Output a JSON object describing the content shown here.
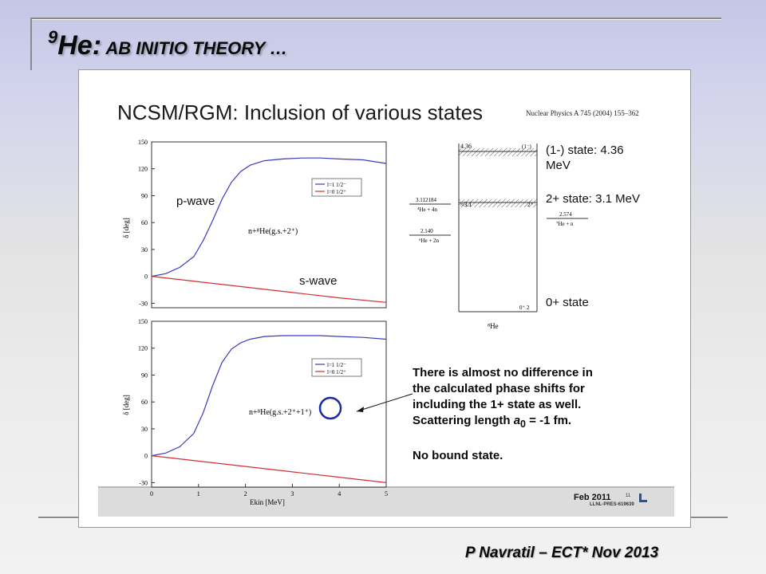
{
  "slide": {
    "title_superscript": "9",
    "title_element": "He:",
    "title_subtitle": " AB INITIO THEORY …",
    "credit": "P Navratil – ECT* Nov 2013"
  },
  "panel": {
    "title": "NCSM/RGM: Inclusion of various states",
    "journal_ref": "Nuclear Physics A 745 (2004) 155–362",
    "footer_date": "Feb 2011",
    "footer_code": "LLNL-PRES-619639",
    "footer_page": "11"
  },
  "plot_top": {
    "y_label": "δ [deg]",
    "y_ticks": [
      "150",
      "120",
      "90",
      "60",
      "30",
      "0",
      "-30"
    ],
    "legend": [
      "l=1 1/2⁻",
      "l=0 1/2⁺"
    ],
    "label_p": "p-wave",
    "label_s": "s-wave",
    "reaction": "n+⁸He(g.s.+2⁺)"
  },
  "plot_bottom": {
    "y_label": "δ [deg]",
    "y_ticks": [
      "150",
      "120",
      "90",
      "60",
      "30",
      "0",
      "-30"
    ],
    "x_ticks": [
      "0",
      "1",
      "2",
      "3",
      "4",
      "5"
    ],
    "x_label": "Ekin [MeV]",
    "legend": [
      "l=1 1/2⁻",
      "l=0 1/2⁺"
    ],
    "reaction_prefix": "n+⁸He(g.s.+2⁺",
    "reaction_circled": "+1⁺)"
  },
  "level_scheme": {
    "level_436": "4.36",
    "level_436_tag": "(1⁻)",
    "level_31": "≈3.1",
    "level_31_tag": "2⁺",
    "level_0_tag": "0⁺ 2",
    "left_1_value": "3.112184",
    "left_1_label": "⁴He + 4n",
    "left_2_value": "2.140",
    "left_2_label": "⁶He + 2n",
    "right_value": "2.574",
    "right_label": "⁷He + n",
    "nucleus": "⁸He",
    "state_1minus": "(1-) state: 4.36 MeV",
    "state_2plus": "2+ state: 3.1 MeV",
    "state_0plus": "0+ state"
  },
  "note": {
    "line1": "There is almost no difference in",
    "line2": "the calculated phase shifts for",
    "line3": "including the 1+ state as well.",
    "line4_prefix": "Scattering length ",
    "line4_sym": "a",
    "line4_sub": "0",
    "line4_suffix": " = -1 fm.",
    "line5": "No bound state."
  },
  "chart_data": [
    {
      "type": "line",
      "title": "",
      "xlabel": "",
      "ylabel": "δ [deg]",
      "xlim": [
        0,
        5
      ],
      "ylim": [
        -35,
        150
      ],
      "series": [
        {
          "name": "l=1 1/2⁻",
          "color": "#3a3ac0",
          "x": [
            0,
            0.3,
            0.6,
            0.9,
            1.1,
            1.3,
            1.5,
            1.7,
            1.9,
            2.1,
            2.4,
            2.8,
            3.2,
            3.6,
            4.0,
            4.5,
            5.0
          ],
          "y": [
            0,
            3,
            10,
            22,
            40,
            62,
            86,
            105,
            117,
            124,
            129,
            131,
            132,
            132,
            131,
            130,
            126
          ]
        },
        {
          "name": "l=0 1/2⁺",
          "color": "#d03030",
          "x": [
            0,
            1,
            2,
            3,
            4,
            5
          ],
          "y": [
            0,
            -6,
            -12,
            -18,
            -24,
            -29
          ]
        }
      ]
    },
    {
      "type": "line",
      "title": "",
      "xlabel": "Ekin [MeV]",
      "ylabel": "δ [deg]",
      "xlim": [
        0,
        5
      ],
      "ylim": [
        -35,
        150
      ],
      "series": [
        {
          "name": "l=1 1/2⁻",
          "color": "#3a3ac0",
          "x": [
            0,
            0.3,
            0.6,
            0.9,
            1.1,
            1.3,
            1.5,
            1.7,
            1.9,
            2.1,
            2.4,
            2.8,
            3.2,
            3.6,
            4.0,
            4.5,
            5.0
          ],
          "y": [
            0,
            3,
            10,
            25,
            48,
            78,
            104,
            119,
            126,
            130,
            133,
            134,
            134,
            134,
            133,
            132,
            130
          ]
        },
        {
          "name": "l=0 1/2⁺",
          "color": "#d03030",
          "x": [
            0,
            1,
            2,
            3,
            4,
            5
          ],
          "y": [
            0,
            -6,
            -12,
            -18,
            -24,
            -30
          ]
        }
      ]
    }
  ]
}
